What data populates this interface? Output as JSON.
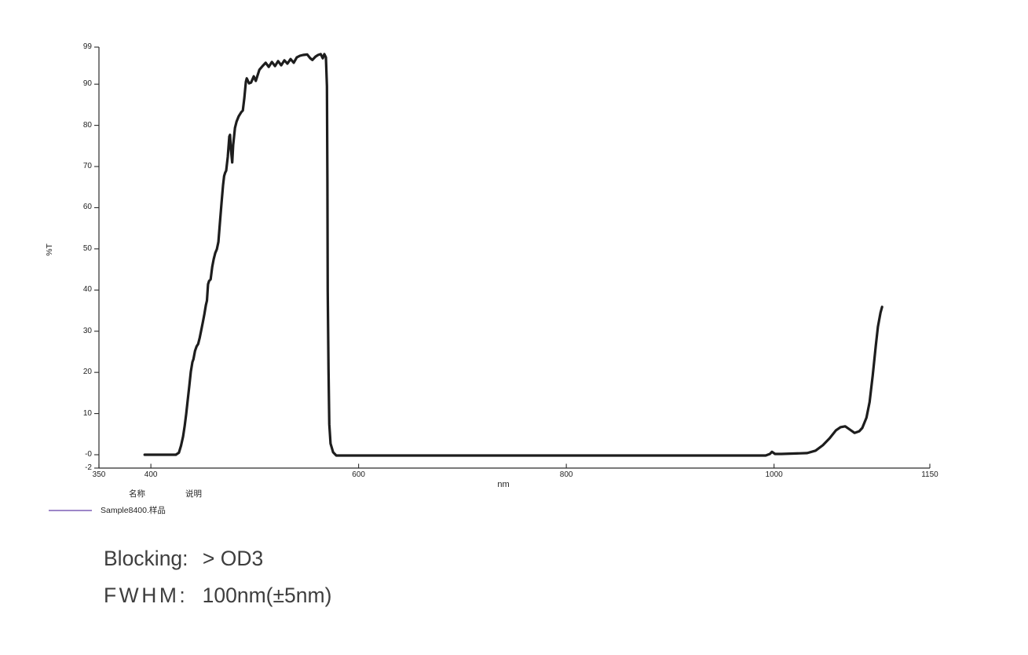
{
  "chart_data": {
    "type": "line",
    "title": "",
    "x_label": "nm",
    "y_label": "%T",
    "x_range": [
      350,
      1150
    ],
    "y_range": [
      -2,
      99
    ],
    "grid": false,
    "legend_position": "bottom-left",
    "x_ticks": [
      350,
      400,
      600,
      800,
      1000,
      1150
    ],
    "y_ticks": [
      {
        "label": "99",
        "value": 99
      },
      {
        "label": "90",
        "value": 90
      },
      {
        "label": "80",
        "value": 80
      },
      {
        "label": "70",
        "value": 70
      },
      {
        "label": "60",
        "value": 60
      },
      {
        "label": "50",
        "value": 50
      },
      {
        "label": "40",
        "value": 40
      },
      {
        "label": "30",
        "value": 30
      },
      {
        "label": "20",
        "value": 20
      },
      {
        "label": "10",
        "value": 10
      },
      {
        "label": "-0",
        "value": 0
      },
      {
        "label": "-2",
        "value": -2
      }
    ],
    "series": [
      {
        "name": "Sample8400.样品",
        "color": "#1d1d1d",
        "points": [
          [
            394,
            0
          ],
          [
            424,
            0
          ],
          [
            427,
            0.5
          ],
          [
            429,
            2.2
          ],
          [
            431,
            4.4
          ],
          [
            432.5,
            6.9
          ],
          [
            434,
            9.9
          ],
          [
            435.5,
            13.4
          ],
          [
            437,
            16.8
          ],
          [
            438.5,
            20.2
          ],
          [
            440,
            22.5
          ],
          [
            441,
            23.2
          ],
          [
            442.5,
            25.2
          ],
          [
            444,
            26.3
          ],
          [
            445.5,
            26.9
          ],
          [
            447,
            28.4
          ],
          [
            448.5,
            30.3
          ],
          [
            450,
            32.2
          ],
          [
            451.5,
            34.1
          ],
          [
            453,
            36.4
          ],
          [
            454,
            37.4
          ],
          [
            455,
            41.4
          ],
          [
            456,
            42.2
          ],
          [
            457.5,
            42.6
          ],
          [
            459,
            45.6
          ],
          [
            460.5,
            47.5
          ],
          [
            462,
            49
          ],
          [
            463.5,
            49.9
          ],
          [
            465,
            51.7
          ],
          [
            466.5,
            56.5
          ],
          [
            468,
            61.2
          ],
          [
            469.5,
            65.4
          ],
          [
            470.5,
            67.7
          ],
          [
            471.5,
            68.5
          ],
          [
            472.5,
            69
          ],
          [
            474,
            72.3
          ],
          [
            475.5,
            77.3
          ],
          [
            476.2,
            77.7
          ],
          [
            477,
            74.2
          ],
          [
            478.3,
            71
          ],
          [
            479.2,
            75.2
          ],
          [
            481,
            79.4
          ],
          [
            482.5,
            80.9
          ],
          [
            484.5,
            82.2
          ],
          [
            487,
            83.2
          ],
          [
            488.5,
            83.6
          ],
          [
            490,
            86.6
          ],
          [
            491.5,
            90.6
          ],
          [
            492.3,
            91.4
          ],
          [
            494.5,
            90.2
          ],
          [
            496.5,
            90.4
          ],
          [
            499,
            91.9
          ],
          [
            501,
            90.8
          ],
          [
            504.5,
            93.5
          ],
          [
            507.5,
            94.4
          ],
          [
            510.5,
            95.2
          ],
          [
            513.5,
            94.2
          ],
          [
            516.5,
            95.4
          ],
          [
            519.5,
            94.4
          ],
          [
            522.5,
            95.6
          ],
          [
            525.5,
            94.6
          ],
          [
            528.5,
            95.8
          ],
          [
            531.5,
            95
          ],
          [
            534.5,
            96.1
          ],
          [
            537.5,
            95.2
          ],
          [
            540.5,
            96.5
          ],
          [
            543.5,
            96.9
          ],
          [
            546.5,
            97.1
          ],
          [
            550.5,
            97.2
          ],
          [
            553.5,
            96.3
          ],
          [
            555.5,
            95.9
          ],
          [
            558.5,
            96.7
          ],
          [
            561,
            97.1
          ],
          [
            563.5,
            97.3
          ],
          [
            565.5,
            96.3
          ],
          [
            567,
            97.3
          ],
          [
            568.5,
            96.5
          ],
          [
            569.5,
            89.5
          ],
          [
            570,
            66.6
          ],
          [
            570.3,
            39.9
          ],
          [
            571,
            20.8
          ],
          [
            571.8,
            7.4
          ],
          [
            573,
            2.7
          ],
          [
            575.5,
            0.6
          ],
          [
            578.5,
            -0.2
          ],
          [
            750,
            -0.2
          ],
          [
            992,
            -0.2
          ],
          [
            996,
            0.2
          ],
          [
            998,
            0.7
          ],
          [
            1001,
            0.2
          ],
          [
            1007,
            0.2
          ],
          [
            1032,
            0.4
          ],
          [
            1040,
            1
          ],
          [
            1047,
            2.3
          ],
          [
            1053.5,
            4
          ],
          [
            1059.5,
            5.9
          ],
          [
            1064,
            6.7
          ],
          [
            1068.5,
            6.9
          ],
          [
            1073,
            6.1
          ],
          [
            1077.5,
            5.3
          ],
          [
            1082,
            5.7
          ],
          [
            1085,
            6.5
          ],
          [
            1089,
            9
          ],
          [
            1092,
            12.8
          ],
          [
            1095,
            19.3
          ],
          [
            1098,
            26.5
          ],
          [
            1100,
            31.1
          ],
          [
            1102.5,
            34.5
          ],
          [
            1104,
            35.9
          ]
        ]
      }
    ]
  },
  "legend": {
    "name_header": "名称",
    "desc_header": "说明",
    "item_label": "Sample8400.样品",
    "line_color": "#9d86c8"
  },
  "specs": {
    "blocking_label": "Blocking:",
    "blocking_value": "> OD3",
    "fwhm_label": "FWHM:",
    "fwhm_value": "100nm(±5nm)"
  },
  "colors": {
    "background": "#ffffff",
    "axis": "#2a2a2a",
    "tick_text": "#1f1f1f",
    "curve": "#1d1d1d",
    "legend_line": "#9d86c8",
    "spec_text": "#3e3e3e"
  }
}
